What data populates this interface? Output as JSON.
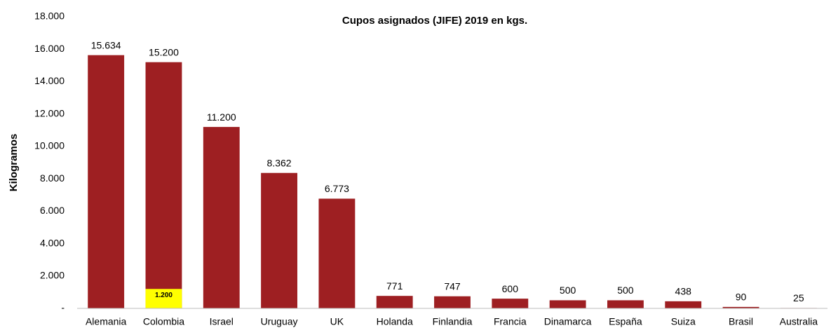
{
  "chart_data": {
    "type": "bar",
    "title": "Cupos asignados (JIFE) 2019 en kgs.",
    "y_label": "Kilogramos",
    "categories": [
      "Alemania",
      "Colombia",
      "Israel",
      "Uruguay",
      "UK",
      "Holanda",
      "Finlandia",
      "Francia",
      "Dinamarca",
      "España",
      "Suiza",
      "Brasil",
      "Australia"
    ],
    "values": [
      15634,
      15200,
      11200,
      8362,
      6773,
      771,
      747,
      600,
      500,
      500,
      438,
      90,
      25
    ],
    "value_labels": [
      "15.634",
      "15.200",
      "11.200",
      "8.362",
      "6.773",
      "771",
      "747",
      "600",
      "500",
      "500",
      "438",
      "90",
      "25"
    ],
    "color": "#9e1f22",
    "highlight": {
      "color": "#ffff00",
      "values": [
        null,
        1200,
        null,
        null,
        null,
        null,
        null,
        null,
        null,
        null,
        null,
        null,
        null
      ],
      "value_labels": [
        null,
        "1.200",
        null,
        null,
        null,
        null,
        null,
        null,
        null,
        null,
        null,
        null,
        null
      ]
    },
    "ylim": [
      0,
      18000
    ],
    "yticks": [
      {
        "value": 0,
        "label": "-"
      },
      {
        "value": 2000,
        "label": "2.000"
      },
      {
        "value": 4000,
        "label": "4.000"
      },
      {
        "value": 6000,
        "label": "6.000"
      },
      {
        "value": 8000,
        "label": "8.000"
      },
      {
        "value": 10000,
        "label": "10.000"
      },
      {
        "value": 12000,
        "label": "12.000"
      },
      {
        "value": 14000,
        "label": "14.000"
      },
      {
        "value": 16000,
        "label": "16.000"
      },
      {
        "value": 18000,
        "label": "18.000"
      }
    ],
    "grid": false
  }
}
